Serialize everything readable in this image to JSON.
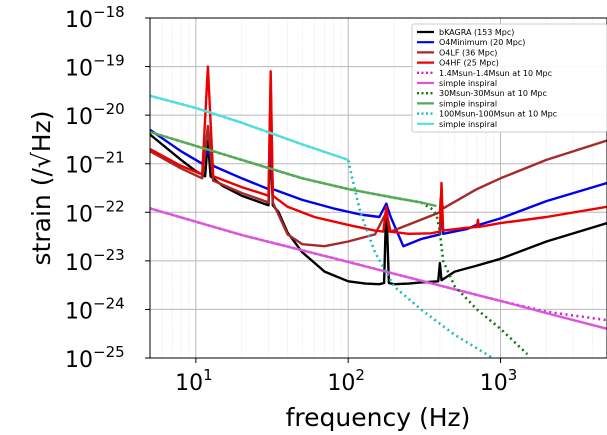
{
  "chart_data": {
    "type": "line",
    "xlabel": "frequency (Hz)",
    "ylabel": "strain (/√Hz)",
    "xscale": "log",
    "yscale": "log",
    "xlim": [
      5,
      5000
    ],
    "ylim": [
      1e-25,
      1e-18
    ],
    "x_ticks": [
      {
        "value": 10,
        "base": "10",
        "exp": "1"
      },
      {
        "value": 100,
        "base": "10",
        "exp": "2"
      },
      {
        "value": 1000,
        "base": "10",
        "exp": "3"
      }
    ],
    "y_ticks": [
      {
        "value": 1e-18,
        "base": "10",
        "exp": "−18"
      },
      {
        "value": 1e-19,
        "base": "10",
        "exp": "−19"
      },
      {
        "value": 1e-20,
        "base": "10",
        "exp": "−20"
      },
      {
        "value": 1e-21,
        "base": "10",
        "exp": "−21"
      },
      {
        "value": 1e-22,
        "base": "10",
        "exp": "−22"
      },
      {
        "value": 1e-23,
        "base": "10",
        "exp": "−23"
      },
      {
        "value": 1e-24,
        "base": "10",
        "exp": "−24"
      },
      {
        "value": 1e-25,
        "base": "10",
        "exp": "−25"
      }
    ],
    "grid": true,
    "legend_position": "top-right",
    "series": [
      {
        "name": "bKAGRA (153 Mpc)",
        "color": "#000000",
        "style": "solid",
        "points": [
          [
            5,
            4e-21
          ],
          [
            8,
            1.2e-21
          ],
          [
            10,
            7e-22
          ],
          [
            11.5,
            5.5e-22
          ],
          [
            12,
            3e-21
          ],
          [
            12.5,
            5.5e-22
          ],
          [
            15,
            3.5e-22
          ],
          [
            20,
            2.2e-22
          ],
          [
            28,
            1.5e-22
          ],
          [
            30,
            1.4e-22
          ],
          [
            31,
            3e-21
          ],
          [
            32,
            1.4e-22
          ],
          [
            35,
            1e-22
          ],
          [
            40,
            3.8e-23
          ],
          [
            50,
            1.5e-23
          ],
          [
            70,
            6e-24
          ],
          [
            100,
            3.8e-24
          ],
          [
            130,
            3.4e-24
          ],
          [
            160,
            3.3e-24
          ],
          [
            172,
            3.5e-24
          ],
          [
            178,
            1.5e-22
          ],
          [
            185,
            3.5e-24
          ],
          [
            200,
            3.3e-24
          ],
          [
            250,
            3.4e-24
          ],
          [
            300,
            3.6e-24
          ],
          [
            390,
            3.8e-24
          ],
          [
            400,
            9e-24
          ],
          [
            410,
            4e-24
          ],
          [
            500,
            6e-24
          ],
          [
            700,
            8e-24
          ],
          [
            1000,
            1.1e-23
          ],
          [
            2000,
            2.5e-23
          ],
          [
            5000,
            6e-23
          ]
        ]
      },
      {
        "name": "O4Minimum (20 Mpc)",
        "color": "#0000ee",
        "style": "solid",
        "points": [
          [
            5,
            5e-21
          ],
          [
            8,
            1.8e-21
          ],
          [
            11,
            1e-21
          ],
          [
            12,
            2e-21
          ],
          [
            13,
            9e-22
          ],
          [
            20,
            5e-22
          ],
          [
            30,
            3e-22
          ],
          [
            31,
            3e-21
          ],
          [
            32,
            3e-22
          ],
          [
            50,
            1.8e-22
          ],
          [
            80,
            1.2e-22
          ],
          [
            120,
            9e-23
          ],
          [
            160,
            8e-23
          ],
          [
            178,
            1.5e-22
          ],
          [
            190,
            8e-23
          ],
          [
            230,
            2e-23
          ],
          [
            300,
            2.8e-23
          ],
          [
            400,
            3.5e-23
          ],
          [
            410,
            1.5e-22
          ],
          [
            420,
            3.6e-23
          ],
          [
            600,
            4.5e-23
          ],
          [
            700,
            5.5e-23
          ],
          [
            710,
            6e-23
          ],
          [
            720,
            5.5e-23
          ],
          [
            1000,
            7.5e-23
          ],
          [
            2000,
            1.7e-22
          ],
          [
            5000,
            4e-22
          ]
        ]
      },
      {
        "name": "O4LF (36 Mpc)",
        "color": "#a52a2a",
        "style": "solid",
        "points": [
          [
            5,
            1.8e-21
          ],
          [
            8,
            8e-22
          ],
          [
            11,
            5e-22
          ],
          [
            12,
            6e-21
          ],
          [
            13,
            4.5e-22
          ],
          [
            20,
            2.5e-22
          ],
          [
            30,
            1.6e-22
          ],
          [
            31,
            5e-20
          ],
          [
            32,
            1.6e-22
          ],
          [
            40,
            3.5e-23
          ],
          [
            50,
            2.2e-23
          ],
          [
            70,
            2e-23
          ],
          [
            100,
            2.5e-23
          ],
          [
            150,
            3.5e-23
          ],
          [
            178,
            1e-22
          ],
          [
            190,
            4e-23
          ],
          [
            300,
            7e-23
          ],
          [
            400,
            1e-22
          ],
          [
            405,
            2e-22
          ],
          [
            420,
            1.2e-22
          ],
          [
            700,
            3e-22
          ],
          [
            1000,
            5e-22
          ],
          [
            2000,
            1.2e-21
          ],
          [
            5000,
            3e-21
          ]
        ]
      },
      {
        "name": "O4HF (25 Mpc)",
        "color": "#ee0000",
        "style": "solid",
        "points": [
          [
            5,
            2e-21
          ],
          [
            8,
            9e-22
          ],
          [
            11,
            6e-22
          ],
          [
            12,
            1e-19
          ],
          [
            13,
            5.5e-22
          ],
          [
            20,
            3.3e-22
          ],
          [
            30,
            2.2e-22
          ],
          [
            31,
            8e-20
          ],
          [
            32,
            2.2e-22
          ],
          [
            40,
            1.3e-22
          ],
          [
            60,
            8e-23
          ],
          [
            100,
            5.5e-23
          ],
          [
            150,
            4.2e-23
          ],
          [
            170,
            4e-23
          ],
          [
            178,
            1.3e-22
          ],
          [
            186,
            4e-23
          ],
          [
            250,
            3.6e-23
          ],
          [
            350,
            3.7e-23
          ],
          [
            400,
            4e-23
          ],
          [
            410,
            4e-22
          ],
          [
            420,
            4.2e-23
          ],
          [
            600,
            4.8e-23
          ],
          [
            700,
            5e-23
          ],
          [
            710,
            7e-23
          ],
          [
            720,
            5e-23
          ],
          [
            1000,
            6e-23
          ],
          [
            2000,
            8e-23
          ],
          [
            5000,
            1.3e-22
          ]
        ]
      },
      {
        "name": "1.4Msun-1.4Msun at 10 Mpc",
        "color": "#cc22cc",
        "style": "dotted",
        "points": [
          [
            5,
            1.2e-22
          ],
          [
            20,
            3.4e-23
          ],
          [
            100,
            9.5e-24
          ],
          [
            500,
            2.6e-24
          ],
          [
            1000,
            1.5e-24
          ],
          [
            2000,
            9e-25
          ],
          [
            5000,
            6e-25
          ]
        ]
      },
      {
        "name": "simple inspiral",
        "color": "#dd55dd",
        "style": "solid",
        "points": [
          [
            5,
            1.2e-22
          ],
          [
            20,
            3.4e-23
          ],
          [
            100,
            9.5e-24
          ],
          [
            500,
            2.6e-24
          ],
          [
            1000,
            1.5e-24
          ],
          [
            2000,
            8.4e-25
          ],
          [
            5000,
            4e-25
          ]
        ]
      },
      {
        "name": "30Msun-30Msun at 10 Mpc",
        "color": "#117711",
        "style": "dotted",
        "points": [
          [
            5,
            4.5e-21
          ],
          [
            20,
            1.2e-21
          ],
          [
            50,
            5e-22
          ],
          [
            100,
            3e-22
          ],
          [
            200,
            2e-22
          ],
          [
            300,
            1.6e-22
          ],
          [
            350,
            1.2e-22
          ],
          [
            380,
            9e-23
          ],
          [
            400,
            4e-23
          ],
          [
            420,
            1e-23
          ],
          [
            500,
            3e-24
          ],
          [
            700,
            1e-24
          ],
          [
            1000,
            4e-25
          ],
          [
            1500,
            1.2e-25
          ]
        ]
      },
      {
        "name": "simple inspiral",
        "color": "#55aa55",
        "style": "solid",
        "points": [
          [
            5,
            4.5e-21
          ],
          [
            20,
            1.2e-21
          ],
          [
            50,
            5e-22
          ],
          [
            100,
            3e-22
          ],
          [
            200,
            2e-22
          ],
          [
            300,
            1.6e-22
          ],
          [
            380,
            1.35e-22
          ]
        ]
      },
      {
        "name": "100Msun-100Msun at 10 Mpc",
        "color": "#22bbbb",
        "style": "dotted",
        "points": [
          [
            5,
            2.5e-20
          ],
          [
            10,
            1.4e-20
          ],
          [
            20,
            7e-21
          ],
          [
            50,
            2.5e-21
          ],
          [
            100,
            1.2e-21
          ],
          [
            105,
            6e-22
          ],
          [
            120,
            1e-22
          ],
          [
            150,
            1.5e-23
          ],
          [
            200,
            3e-24
          ],
          [
            300,
            1e-24
          ],
          [
            500,
            3e-25
          ],
          [
            1000,
            8e-26
          ]
        ]
      },
      {
        "name": "simple inspiral",
        "color": "#55dddd",
        "style": "solid",
        "points": [
          [
            5,
            2.5e-20
          ],
          [
            10,
            1.4e-20
          ],
          [
            20,
            7e-21
          ],
          [
            50,
            2.5e-21
          ],
          [
            100,
            1.2e-21
          ]
        ]
      }
    ]
  }
}
